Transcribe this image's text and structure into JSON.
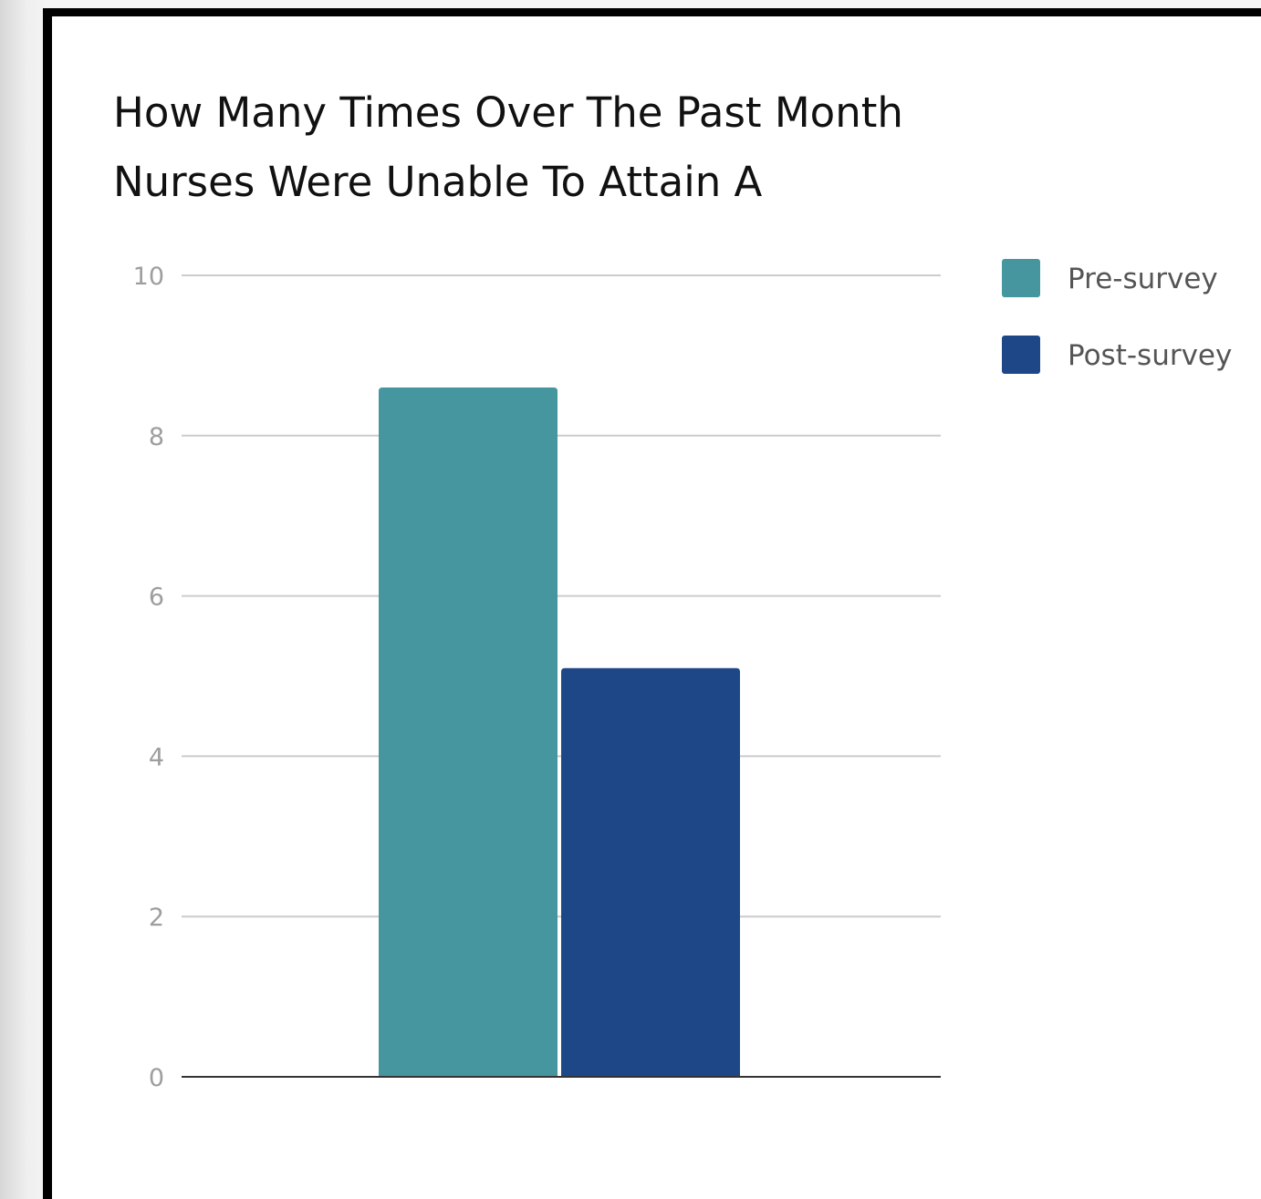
{
  "chart_data": {
    "type": "bar",
    "title": [
      "How Many Times Over The Past Month",
      "Nurses Were Unable To Attain A"
    ],
    "categories": [
      ""
    ],
    "series": [
      {
        "name": "Pre-survey",
        "values": [
          8.6
        ],
        "color": "#45969f"
      },
      {
        "name": "Post-survey",
        "values": [
          5.1
        ],
        "color": "#1e4787"
      }
    ],
    "ylim": [
      0,
      10
    ],
    "yticks": [
      "0",
      "2",
      "4",
      "6",
      "8",
      "10"
    ],
    "xlabel": "",
    "ylabel": "",
    "grid": true,
    "legend_position": "right"
  }
}
